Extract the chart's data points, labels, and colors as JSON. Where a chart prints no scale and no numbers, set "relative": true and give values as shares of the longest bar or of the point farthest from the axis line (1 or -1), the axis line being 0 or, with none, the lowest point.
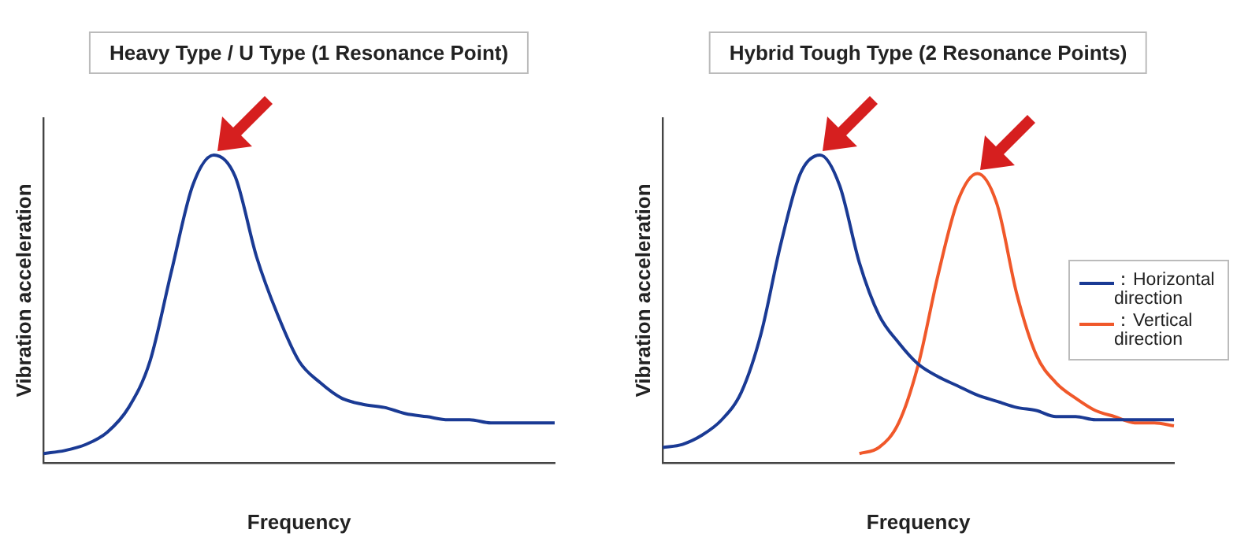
{
  "chart_data": [
    {
      "type": "line",
      "title": "Heavy Type / U Type (1 Resonance Point)",
      "xlabel": "Frequency",
      "ylabel": "Vibration acceleration",
      "relative": true,
      "grid": false,
      "legend": false,
      "marker": "none",
      "categories": [
        null,
        null,
        null,
        null,
        null,
        null,
        null,
        null,
        null,
        null,
        null,
        null,
        null,
        null,
        null,
        null,
        null,
        null,
        null,
        null,
        null,
        null,
        null,
        null,
        null
      ],
      "series": [
        {
          "color": "#1a3a94",
          "values": [
            0.03,
            0.04,
            0.06,
            0.1,
            0.18,
            0.33,
            0.62,
            0.9,
            1.0,
            0.93,
            0.67,
            0.48,
            0.33,
            0.26,
            0.21,
            0.19,
            0.18,
            0.16,
            0.15,
            0.14,
            0.14,
            0.13,
            0.13,
            0.13,
            0.13
          ]
        }
      ]
    },
    {
      "type": "line",
      "title": "Hybrid Tough Type (2 Resonance Points)",
      "xlabel": "Frequency",
      "ylabel": "Vibration acceleration",
      "relative": true,
      "grid": false,
      "legend": "right",
      "marker": "none",
      "categories": [
        null,
        null,
        null,
        null,
        null,
        null,
        null,
        null,
        null,
        null,
        null,
        null,
        null,
        null,
        null,
        null,
        null,
        null,
        null,
        null,
        null,
        null,
        null,
        null,
        null,
        null,
        null
      ],
      "series": [
        {
          "name": "：Horizontal direction",
          "color": "#1a3a94",
          "values": [
            0.05,
            0.06,
            0.09,
            0.14,
            0.23,
            0.42,
            0.71,
            0.94,
            1.0,
            0.9,
            0.65,
            0.48,
            0.39,
            0.32,
            0.28,
            0.25,
            0.22,
            0.2,
            0.18,
            0.17,
            0.15,
            0.15,
            0.14,
            0.14,
            0.14,
            0.14,
            0.14
          ]
        },
        {
          "name": "：Vertical direction",
          "color": "#f0582a",
          "values": [
            null,
            null,
            null,
            null,
            null,
            null,
            null,
            null,
            null,
            null,
            0.03,
            0.05,
            0.13,
            0.32,
            0.61,
            0.85,
            0.94,
            0.84,
            0.55,
            0.35,
            0.26,
            0.21,
            0.17,
            0.15,
            0.13,
            0.13,
            0.12
          ]
        }
      ]
    }
  ]
}
